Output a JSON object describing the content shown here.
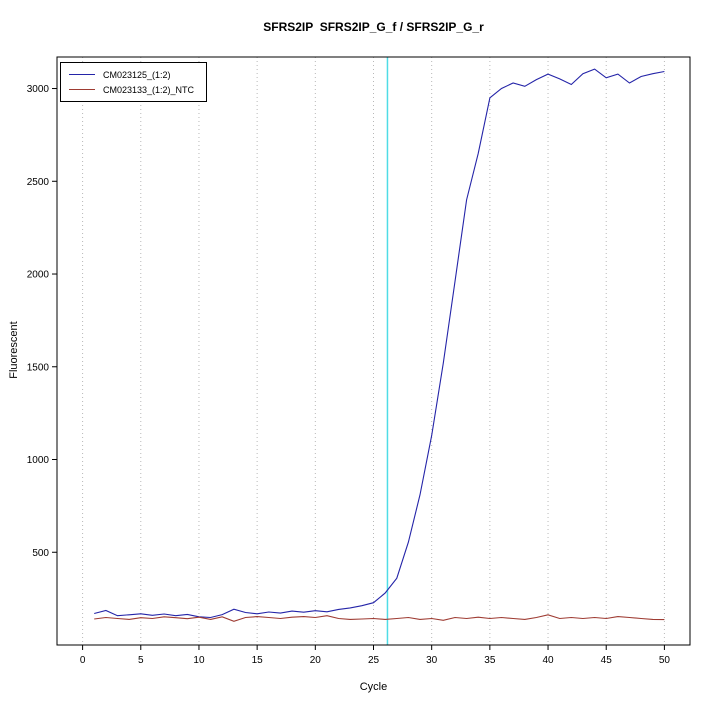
{
  "title": "SFRS2IP  SFRS2IP_G_f / SFRS2IP_G_r",
  "chart_data": {
    "type": "line",
    "title": "SFRS2IP  SFRS2IP_G_f / SFRS2IP_G_r",
    "xlabel": "Cycle",
    "ylabel": "Fluorescent",
    "x_ticks": [
      0,
      5,
      10,
      15,
      20,
      25,
      30,
      35,
      40,
      45,
      50
    ],
    "y_ticks": [
      500,
      1000,
      1500,
      2000,
      2500,
      3000
    ],
    "x_range": [
      -2.2,
      52.2
    ],
    "y_range": [
      0,
      3170
    ],
    "grid": "vertical-dotted",
    "grid_color": "#b8b8b8",
    "legend_position": "top-left",
    "threshold_line": {
      "x": 26.2,
      "color": "#4fdce6",
      "label": "Ct threshold"
    },
    "x": [
      1,
      2,
      3,
      4,
      5,
      6,
      7,
      8,
      9,
      10,
      11,
      12,
      13,
      14,
      15,
      16,
      17,
      18,
      19,
      20,
      21,
      22,
      23,
      24,
      25,
      26,
      27,
      28,
      29,
      30,
      31,
      32,
      33,
      34,
      35,
      36,
      37,
      38,
      39,
      40,
      41,
      42,
      43,
      44,
      45,
      46,
      47,
      48,
      49,
      50
    ],
    "series": [
      {
        "name": "CM023125_(1:2)",
        "color": "#2424a8",
        "values": [
          170,
          186,
          158,
          163,
          168,
          160,
          167,
          158,
          165,
          152,
          148,
          164,
          193,
          175,
          168,
          178,
          172,
          183,
          177,
          185,
          179,
          192,
          200,
          212,
          228,
          280,
          360,
          555,
          810,
          1130,
          1520,
          1960,
          2400,
          2650,
          2950,
          3000,
          3030,
          3012,
          3048,
          3078,
          3052,
          3022,
          3080,
          3105,
          3058,
          3078,
          3030,
          3065,
          3080,
          3092
        ]
      },
      {
        "name": "CM023133_(1:2)_NTC",
        "color": "#9e3b32",
        "values": [
          140,
          148,
          143,
          138,
          147,
          143,
          152,
          147,
          142,
          150,
          138,
          152,
          128,
          148,
          153,
          148,
          143,
          150,
          153,
          148,
          158,
          143,
          138,
          140,
          143,
          138,
          143,
          148,
          138,
          143,
          133,
          148,
          143,
          150,
          143,
          148,
          143,
          138,
          148,
          163,
          143,
          148,
          143,
          148,
          143,
          153,
          148,
          143,
          138,
          137
        ]
      }
    ]
  }
}
